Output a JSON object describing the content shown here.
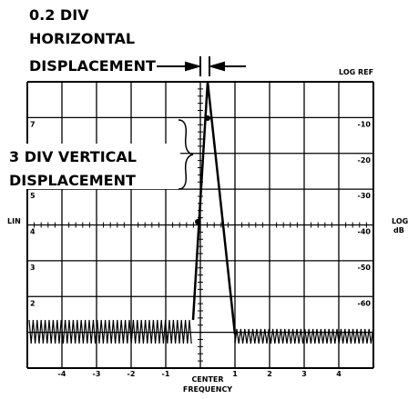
{
  "annotations": {
    "horizontal": [
      "0.2 DIV",
      "HORIZONTAL",
      "DISPLACEMENT"
    ],
    "vertical": [
      "3 DIV VERTICAL",
      "DISPLACEMENT"
    ]
  },
  "labels": {
    "log_ref": "LOG REF",
    "lin": "LIN",
    "log_db": [
      "LOG",
      "dB"
    ],
    "center": [
      "CENTER",
      "FREQUENCY"
    ]
  },
  "left_scale": [
    "7",
    "5",
    "4",
    "3",
    "2"
  ],
  "right_scale": [
    "-10",
    "-20",
    "-30",
    "-40",
    "-50",
    "-60"
  ],
  "bottom_scale": [
    "-4",
    "-3",
    "-2",
    "-1",
    "1",
    "2",
    "3",
    "4"
  ]
}
